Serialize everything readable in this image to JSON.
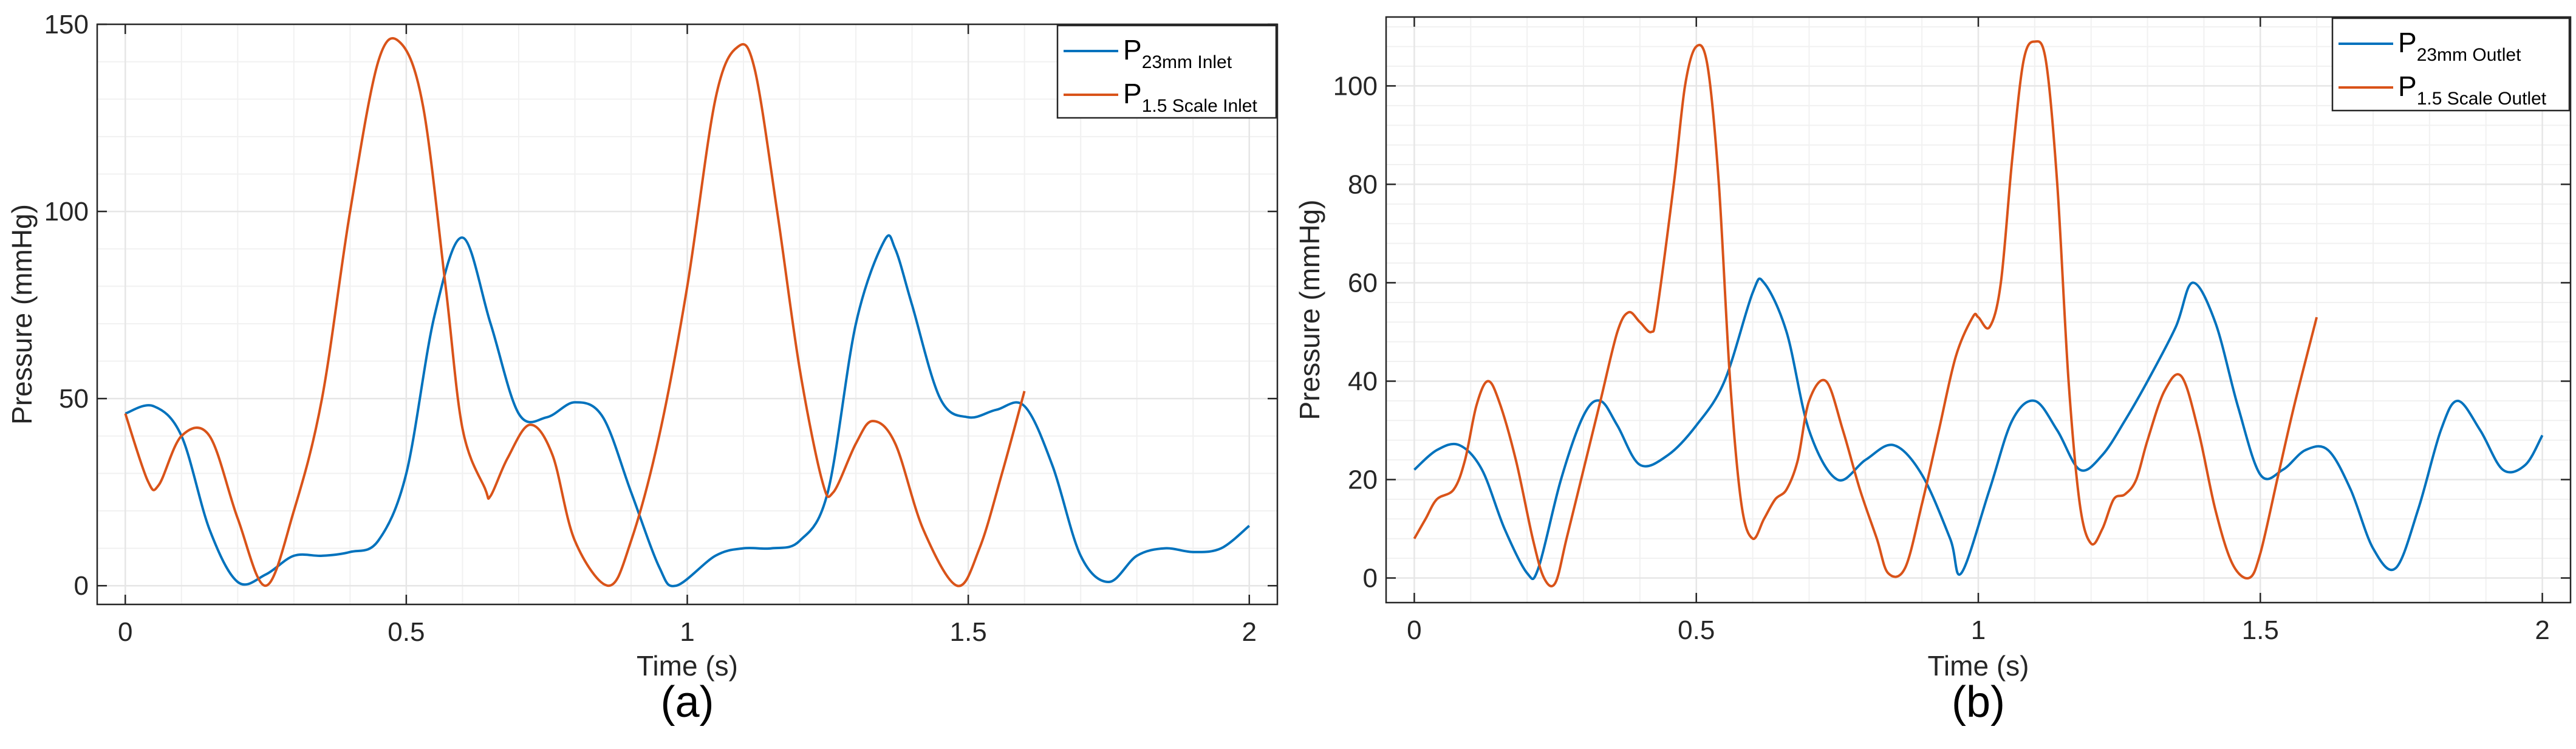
{
  "figure": {
    "panels": [
      {
        "label": "(a)"
      },
      {
        "label": "(b)"
      }
    ]
  },
  "colors": {
    "blue": "#0072BD",
    "orange": "#D95319",
    "axis": "#262626",
    "grid": "#e6e6e6"
  },
  "chart_data": [
    {
      "type": "line",
      "title": "",
      "panel_label": "(a)",
      "xlabel": "Time (s)",
      "ylabel": "Pressure (mmHg)",
      "xlim": [
        -0.05,
        2.05
      ],
      "ylim": [
        -5,
        150
      ],
      "xticks": [
        0,
        0.5,
        1,
        1.5,
        2
      ],
      "xtick_labels": [
        "0",
        "0.5",
        "1",
        "1.5",
        "2"
      ],
      "yticks": [
        0,
        50,
        100,
        150
      ],
      "ytick_labels": [
        "0",
        "50",
        "100",
        "150"
      ],
      "grid": true,
      "legend_position": "top-right",
      "series": [
        {
          "name": "P 23mm Inlet",
          "legend_main": "P",
          "legend_sub": "23mm Inlet",
          "color": "#0072BD",
          "x": [
            0,
            0.05,
            0.1,
            0.15,
            0.2,
            0.25,
            0.3,
            0.35,
            0.4,
            0.45,
            0.5,
            0.55,
            0.6,
            0.65,
            0.7,
            0.75,
            0.8,
            0.85,
            0.9,
            0.95,
            0.98,
            1.05,
            1.1,
            1.15,
            1.2,
            1.25,
            1.3,
            1.35,
            1.37,
            1.4,
            1.45,
            1.5,
            1.55,
            1.6,
            1.65,
            1.7,
            1.75,
            1.8,
            1.85,
            1.9,
            1.95,
            2.0
          ],
          "y": [
            46,
            48,
            40,
            15,
            1,
            3,
            8,
            8,
            9,
            12,
            30,
            72,
            93,
            70,
            46,
            45,
            49,
            45,
            25,
            5,
            0,
            8,
            10,
            10,
            12,
            25,
            70,
            92,
            90,
            75,
            50,
            45,
            47,
            48,
            32,
            8,
            1,
            8,
            10,
            9,
            10,
            16
          ],
          "smooth": true
        },
        {
          "name": "P 1.5 Scale Inlet",
          "legend_main": "P",
          "legend_sub": "1.5 Scale Inlet",
          "color": "#D95319",
          "x": [
            0,
            0.04,
            0.06,
            0.1,
            0.15,
            0.2,
            0.25,
            0.3,
            0.35,
            0.4,
            0.45,
            0.49,
            0.53,
            0.57,
            0.6,
            0.64,
            0.65,
            0.68,
            0.72,
            0.76,
            0.8,
            0.86,
            0.9,
            0.95,
            1.0,
            1.05,
            1.09,
            1.12,
            1.16,
            1.2,
            1.24,
            1.26,
            1.3,
            1.33,
            1.37,
            1.42,
            1.48,
            1.52,
            1.56,
            1.6
          ],
          "y": [
            46,
            28,
            27,
            40,
            40,
            18,
            0,
            20,
            50,
            100,
            140,
            145,
            128,
            80,
            42,
            26,
            24,
            34,
            43,
            35,
            12,
            0,
            12,
            40,
            80,
            130,
            144,
            138,
            100,
            58,
            28,
            25,
            38,
            44,
            38,
            15,
            0,
            10,
            30,
            52
          ],
          "smooth": true
        }
      ]
    },
    {
      "type": "line",
      "title": "",
      "panel_label": "(b)",
      "xlabel": "Time (s)",
      "ylabel": "Pressure (mmHg)",
      "xlim": [
        -0.05,
        2.05
      ],
      "ylim": [
        -5,
        114
      ],
      "xticks": [
        0,
        0.5,
        1,
        1.5,
        2
      ],
      "xtick_labels": [
        "0",
        "0.5",
        "1",
        "1.5",
        "2"
      ],
      "yticks": [
        0,
        20,
        40,
        60,
        80,
        100
      ],
      "ytick_labels": [
        "0",
        "20",
        "40",
        "60",
        "80",
        "100"
      ],
      "grid": true,
      "legend_position": "top-right",
      "series": [
        {
          "name": "P 23mm Outlet",
          "legend_main": "P",
          "legend_sub": "23mm Outlet",
          "color": "#0072BD",
          "x": [
            0,
            0.04,
            0.08,
            0.12,
            0.16,
            0.2,
            0.22,
            0.26,
            0.3,
            0.33,
            0.36,
            0.4,
            0.45,
            0.5,
            0.55,
            0.6,
            0.62,
            0.66,
            0.7,
            0.75,
            0.8,
            0.85,
            0.9,
            0.95,
            0.97,
            1.02,
            1.06,
            1.1,
            1.14,
            1.18,
            1.22,
            1.26,
            1.3,
            1.35,
            1.38,
            1.42,
            1.46,
            1.5,
            1.54,
            1.58,
            1.62,
            1.66,
            1.7,
            1.74,
            1.78,
            1.82,
            1.85,
            1.89,
            1.93,
            1.97,
            2.0
          ],
          "y": [
            22,
            26,
            27,
            22,
            10,
            1,
            2,
            20,
            33,
            36,
            31,
            23,
            25,
            31,
            40,
            58,
            60,
            50,
            30,
            20,
            24,
            27,
            21,
            8,
            1,
            18,
            32,
            36,
            30,
            22,
            25,
            32,
            40,
            51,
            60,
            52,
            35,
            21,
            22,
            26,
            26,
            18,
            6,
            2,
            14,
            30,
            36,
            30,
            22,
            23,
            29
          ],
          "smooth": true
        },
        {
          "name": "P 1.5 Scale Outlet",
          "legend_main": "P",
          "legend_sub": "1.5 Scale Outlet",
          "color": "#D95319",
          "x": [
            0,
            0.02,
            0.04,
            0.07,
            0.09,
            0.11,
            0.13,
            0.15,
            0.18,
            0.21,
            0.23,
            0.25,
            0.27,
            0.3,
            0.33,
            0.36,
            0.38,
            0.4,
            0.42,
            0.43,
            0.46,
            0.48,
            0.5,
            0.52,
            0.54,
            0.56,
            0.58,
            0.6,
            0.62,
            0.64,
            0.66,
            0.68,
            0.7,
            0.73,
            0.76,
            0.79,
            0.82,
            0.84,
            0.87,
            0.9,
            0.93,
            0.96,
            0.99,
            1.0,
            1.02,
            1.04,
            1.06,
            1.08,
            1.1,
            1.12,
            1.14,
            1.16,
            1.18,
            1.2,
            1.22,
            1.24,
            1.26,
            1.28,
            1.3,
            1.33,
            1.36,
            1.39,
            1.42,
            1.45,
            1.48,
            1.5,
            1.53,
            1.56,
            1.6
          ],
          "y": [
            8,
            12,
            16,
            18,
            24,
            35,
            40,
            36,
            24,
            8,
            0,
            -1,
            8,
            22,
            36,
            50,
            54,
            52,
            50,
            54,
            80,
            100,
            108,
            104,
            80,
            40,
            15,
            8,
            12,
            16,
            18,
            24,
            36,
            40,
            30,
            18,
            8,
            1,
            2,
            15,
            30,
            45,
            53,
            53,
            51,
            60,
            85,
            105,
            109,
            105,
            80,
            40,
            15,
            7,
            10,
            16,
            17,
            20,
            28,
            38,
            41,
            30,
            14,
            3,
            0,
            5,
            20,
            35,
            53
          ],
          "smooth": true
        }
      ]
    }
  ]
}
